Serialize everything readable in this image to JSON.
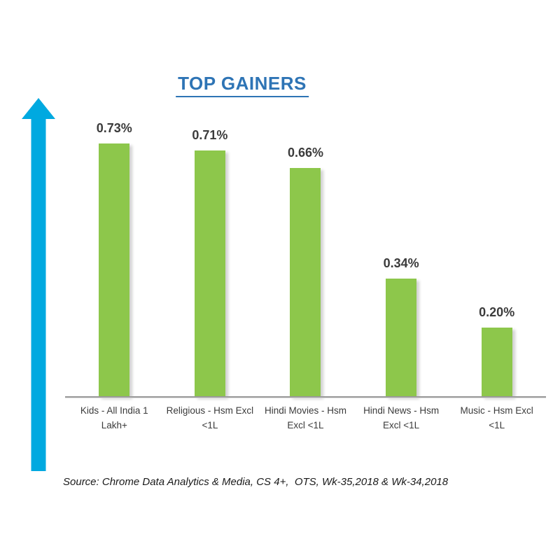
{
  "title": "TOP GAINERS",
  "source": "Source: Chrome Data Analytics & Media, CS 4+,  OTS, Wk-35,2018 & Wk-34,2018",
  "colors": {
    "bar": "#8DC74B",
    "title": "#2E74B5",
    "arrow": "#00A9E0",
    "axis": "#9B9B9B",
    "text": "#3B3B3B"
  },
  "icons": {
    "up_arrow": "up-arrow indicating gains"
  },
  "chart_data": {
    "type": "bar",
    "title": "TOP GAINERS",
    "categories": [
      "Kids - All India 1 Lakh+",
      "Religious - Hsm Excl <1L",
      "Hindi Movies - Hsm Excl <1L",
      "Hindi News - Hsm Excl <1L",
      "Music - Hsm Excl <1L"
    ],
    "values": [
      0.73,
      0.71,
      0.66,
      0.34,
      0.2
    ],
    "value_labels": [
      "0.73%",
      "0.71%",
      "0.66%",
      "0.34%",
      "0.20%"
    ],
    "unit": "%",
    "xlabel": "",
    "ylabel": "",
    "ylim": [
      0,
      0.8
    ],
    "grid": false,
    "legend": false,
    "y_axis_shown": false,
    "annotation": "blue upward arrow at left emphasizing growth"
  }
}
